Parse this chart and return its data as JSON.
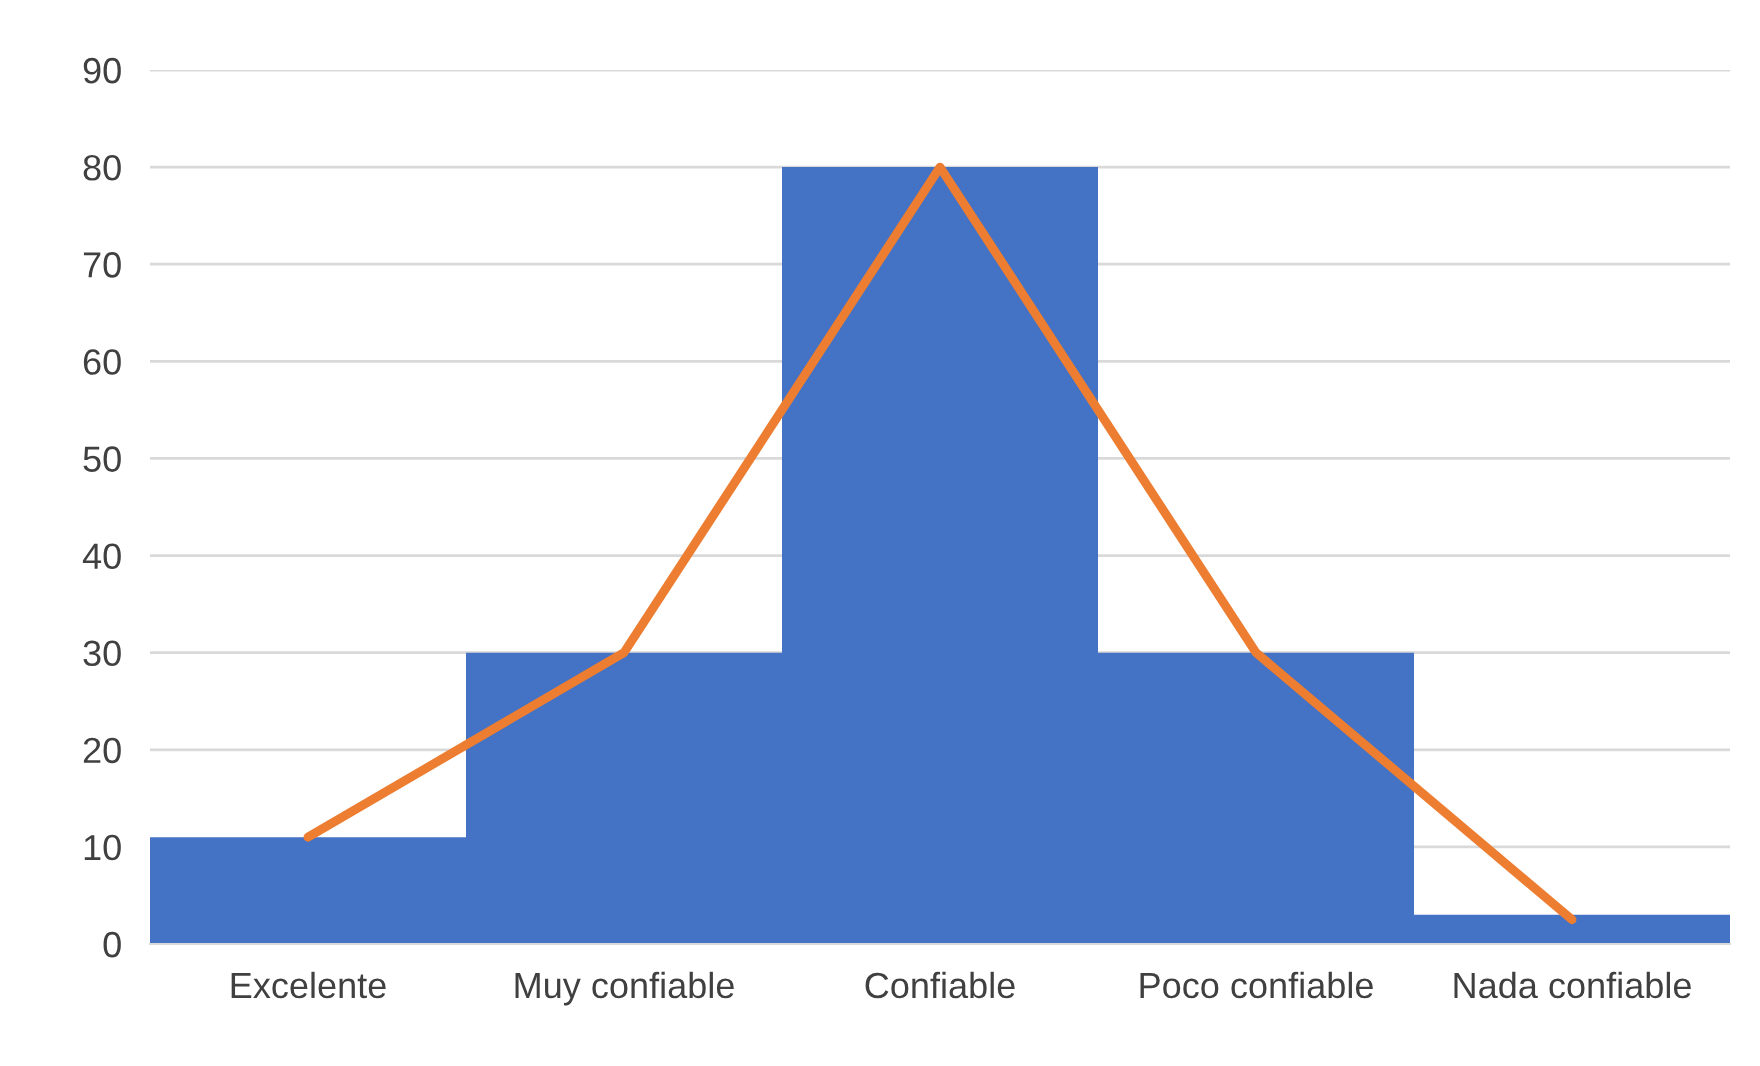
{
  "chart_data": {
    "type": "bar",
    "categories": [
      "Excelente",
      "Muy confiable",
      "Confiable",
      "Poco confiable",
      "Nada confiable"
    ],
    "series": [
      {
        "color": "#4472c4",
        "values": [
          11,
          30,
          80,
          30,
          3
        ]
      },
      {
        "type": "line",
        "color": "#ed7d31",
        "values": [
          11,
          30,
          80,
          30,
          2.5
        ]
      }
    ],
    "ylim": [
      0,
      90
    ],
    "yticks": [
      0,
      10,
      20,
      30,
      40,
      50,
      60,
      70,
      80,
      90
    ],
    "grid": "y",
    "legend": false
  }
}
